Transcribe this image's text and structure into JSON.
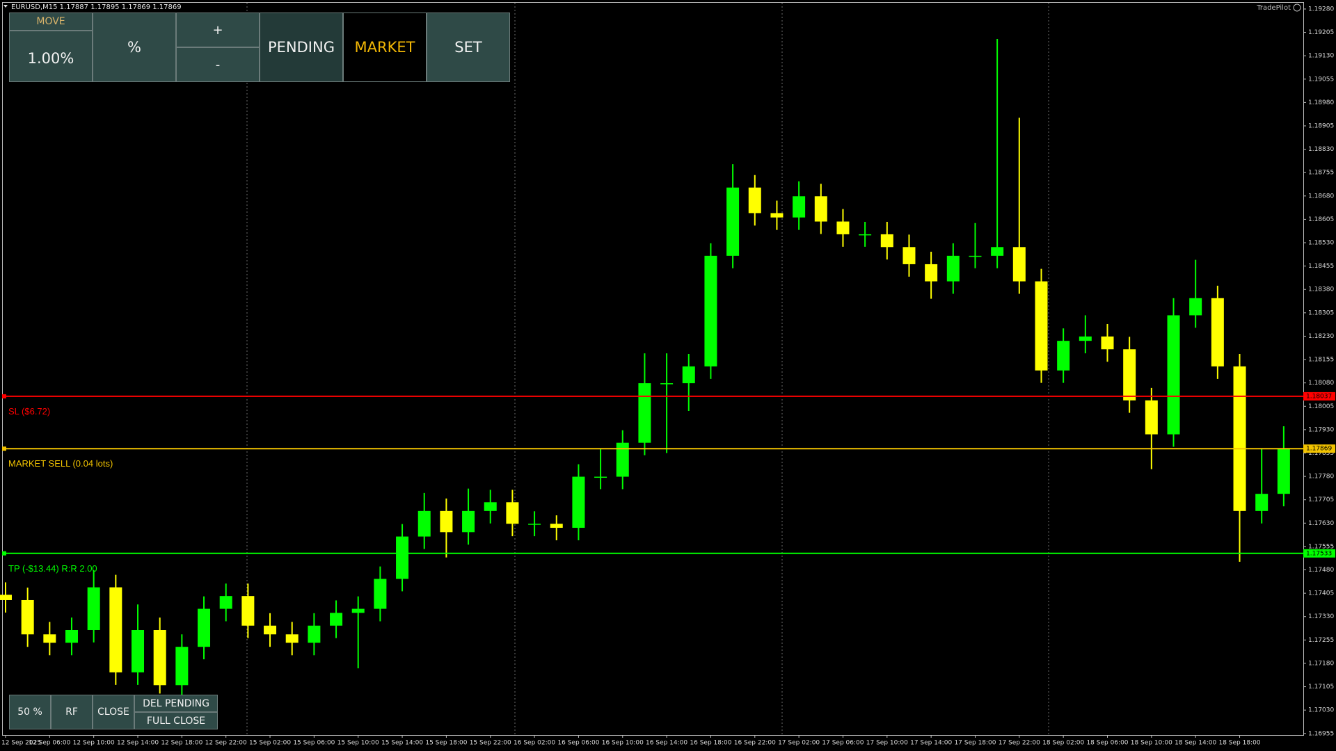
{
  "header": {
    "symbol_info": "EURUSD,M15  1.17887 1.17895 1.17869 1.17869",
    "brand": "TradePilot"
  },
  "toolbar": {
    "move": "MOVE",
    "risk": "1.00%",
    "mode": "%",
    "plus": "+",
    "minus": "-",
    "pending": "PENDING",
    "market": "MARKET",
    "set": "SET"
  },
  "bottom_buttons": {
    "half": "50 %",
    "rf": "RF",
    "close": "CLOSE",
    "del_pending": "DEL PENDING",
    "full_close": "FULL CLOSE"
  },
  "chart_data": {
    "type": "candlestick",
    "up_color": "#00ff00",
    "down_color": "#ffff00",
    "categories": [
      "12 Sep 2025",
      null,
      "12 Sep 06:00",
      null,
      "12 Sep 10:00",
      null,
      "12 Sep 14:00",
      null,
      "12 Sep 18:00",
      null,
      "12 Sep 22:00",
      null,
      "15 Sep 02:00",
      null,
      "15 Sep 06:00",
      null,
      "15 Sep 10:00",
      null,
      "15 Sep 14:00",
      null,
      "15 Sep 18:00",
      null,
      "15 Sep 22:00",
      null,
      "16 Sep 02:00",
      null,
      "16 Sep 06:00",
      null,
      "16 Sep 10:00",
      null,
      "16 Sep 14:00",
      null,
      "16 Sep 18:00",
      null,
      "16 Sep 22:00",
      null,
      "17 Sep 02:00",
      null,
      "17 Sep 06:00",
      null,
      "17 Sep 10:00",
      null,
      "17 Sep 14:00",
      null,
      "17 Sep 18:00",
      null,
      "17 Sep 22:00",
      null,
      "18 Sep 02:00",
      null,
      "18 Sep 06:00",
      null,
      "18 Sep 10:00",
      null,
      "18 Sep 14:00",
      null,
      "18 Sep 18:00",
      null,
      null
    ],
    "open": [
      1.174,
      1.17383,
      1.17273,
      1.17246,
      1.17287,
      1.17424,
      1.17151,
      1.17287,
      1.1711,
      1.17233,
      1.17355,
      1.17396,
      1.17301,
      1.17273,
      1.17246,
      1.17301,
      1.17342,
      1.17355,
      1.17451,
      1.17587,
      1.17669,
      1.17601,
      1.17669,
      1.17697,
      1.17628,
      1.17628,
      1.17615,
      1.17779,
      1.17779,
      1.17888,
      1.18079,
      1.18079,
      1.18133,
      1.18488,
      1.18707,
      1.18625,
      1.18611,
      1.18679,
      1.18598,
      1.18557,
      1.18557,
      1.18516,
      1.18461,
      1.18406,
      1.18488,
      1.18488,
      1.18516,
      1.18406,
      1.1812,
      1.18215,
      1.18229,
      1.18188,
      1.18024,
      1.17915,
      1.18297,
      1.18352,
      1.18133,
      1.17669,
      1.17724
    ],
    "high": [
      1.1744,
      1.17423,
      1.17313,
      1.17327,
      1.17479,
      1.17464,
      1.17369,
      1.17327,
      1.17273,
      1.17395,
      1.17436,
      1.17436,
      1.17341,
      1.17313,
      1.17341,
      1.17382,
      1.17395,
      1.17491,
      1.17627,
      1.17727,
      1.17709,
      1.17741,
      1.17737,
      1.17737,
      1.17668,
      1.17655,
      1.17819,
      1.17869,
      1.17928,
      1.18175,
      1.18175,
      1.18173,
      1.18528,
      1.18782,
      1.18747,
      1.18665,
      1.18727,
      1.18719,
      1.18638,
      1.18597,
      1.18597,
      1.18556,
      1.18501,
      1.18528,
      1.18593,
      1.19184,
      1.18931,
      1.18446,
      1.18255,
      1.18297,
      1.18269,
      1.18228,
      1.18064,
      1.18352,
      1.18475,
      1.18392,
      1.18173,
      1.1787,
      1.17941
    ],
    "low": [
      1.17343,
      1.17233,
      1.17206,
      1.17206,
      1.17247,
      1.17111,
      1.17111,
      1.17083,
      1.1707,
      1.17193,
      1.17315,
      1.17261,
      1.17233,
      1.17206,
      1.17206,
      1.17261,
      1.17164,
      1.17315,
      1.17411,
      1.17547,
      1.1752,
      1.17561,
      1.17629,
      1.17588,
      1.17588,
      1.17575,
      1.17575,
      1.17739,
      1.17739,
      1.17848,
      1.17855,
      1.1799,
      1.18093,
      1.18448,
      1.18585,
      1.18571,
      1.18571,
      1.18558,
      1.18517,
      1.18517,
      1.18476,
      1.18421,
      1.1835,
      1.18366,
      1.18448,
      1.18448,
      1.18366,
      1.1808,
      1.1808,
      1.18175,
      1.18148,
      1.17984,
      1.17803,
      1.17875,
      1.18257,
      1.18093,
      1.17506,
      1.17629,
      1.17684
    ],
    "close": [
      1.17383,
      1.17273,
      1.17246,
      1.17287,
      1.17424,
      1.17151,
      1.17287,
      1.1711,
      1.17233,
      1.17355,
      1.17396,
      1.17301,
      1.17273,
      1.17246,
      1.17301,
      1.17342,
      1.17355,
      1.17451,
      1.17587,
      1.17669,
      1.17601,
      1.17669,
      1.17697,
      1.17628,
      1.17628,
      1.17615,
      1.17779,
      1.17779,
      1.17888,
      1.18079,
      1.18079,
      1.18133,
      1.18488,
      1.18707,
      1.18625,
      1.18611,
      1.18679,
      1.18598,
      1.18557,
      1.18557,
      1.18516,
      1.18461,
      1.18406,
      1.18488,
      1.18488,
      1.18516,
      1.18406,
      1.1812,
      1.18215,
      1.18229,
      1.18188,
      1.18024,
      1.17915,
      1.18297,
      1.18352,
      1.18133,
      1.17669,
      1.17724,
      1.17869
    ],
    "ylim": [
      1.1695,
      1.193
    ],
    "yticks": [
      1.16955,
      {
        "value": 1.1703,
        "label": "1.17030"
      },
      1.17105,
      {
        "value": 1.1718,
        "label": "1.17180"
      },
      1.17255,
      {
        "value": 1.1733,
        "label": "1.17330"
      },
      1.17405,
      {
        "value": 1.1748,
        "label": "1.17480"
      },
      1.17555,
      {
        "value": 1.1763,
        "label": "1.17630"
      },
      1.17705,
      {
        "value": 1.1778,
        "label": "1.17780"
      },
      1.17855,
      {
        "value": 1.1793,
        "label": "1.17930"
      },
      1.18005,
      {
        "value": 1.1808,
        "label": "1.18080"
      },
      1.18155,
      {
        "value": 1.1823,
        "label": "1.18230"
      },
      1.18305,
      {
        "value": 1.1838,
        "label": "1.18380"
      },
      1.18455,
      {
        "value": 1.1853,
        "label": "1.18530"
      },
      1.18605,
      {
        "value": 1.1868,
        "label": "1.18680"
      },
      1.18755,
      {
        "value": 1.1883,
        "label": "1.18830"
      },
      1.18905,
      {
        "value": 1.1898,
        "label": "1.18980"
      },
      1.19055,
      {
        "value": 1.1913,
        "label": "1.19130"
      },
      1.19205,
      {
        "value": 1.1928,
        "label": "1.19280"
      }
    ],
    "levels": [
      {
        "label": "SL ($6.72)",
        "value": 1.18037,
        "color": "#ff0000"
      },
      {
        "label": "MARKET SELL (0.04 lots)",
        "value": 1.17869,
        "color": "#f2c300"
      },
      {
        "label": "TP (-$13.44) R:R 2.00",
        "value": 1.17533,
        "color": "#00ff00"
      }
    ]
  }
}
